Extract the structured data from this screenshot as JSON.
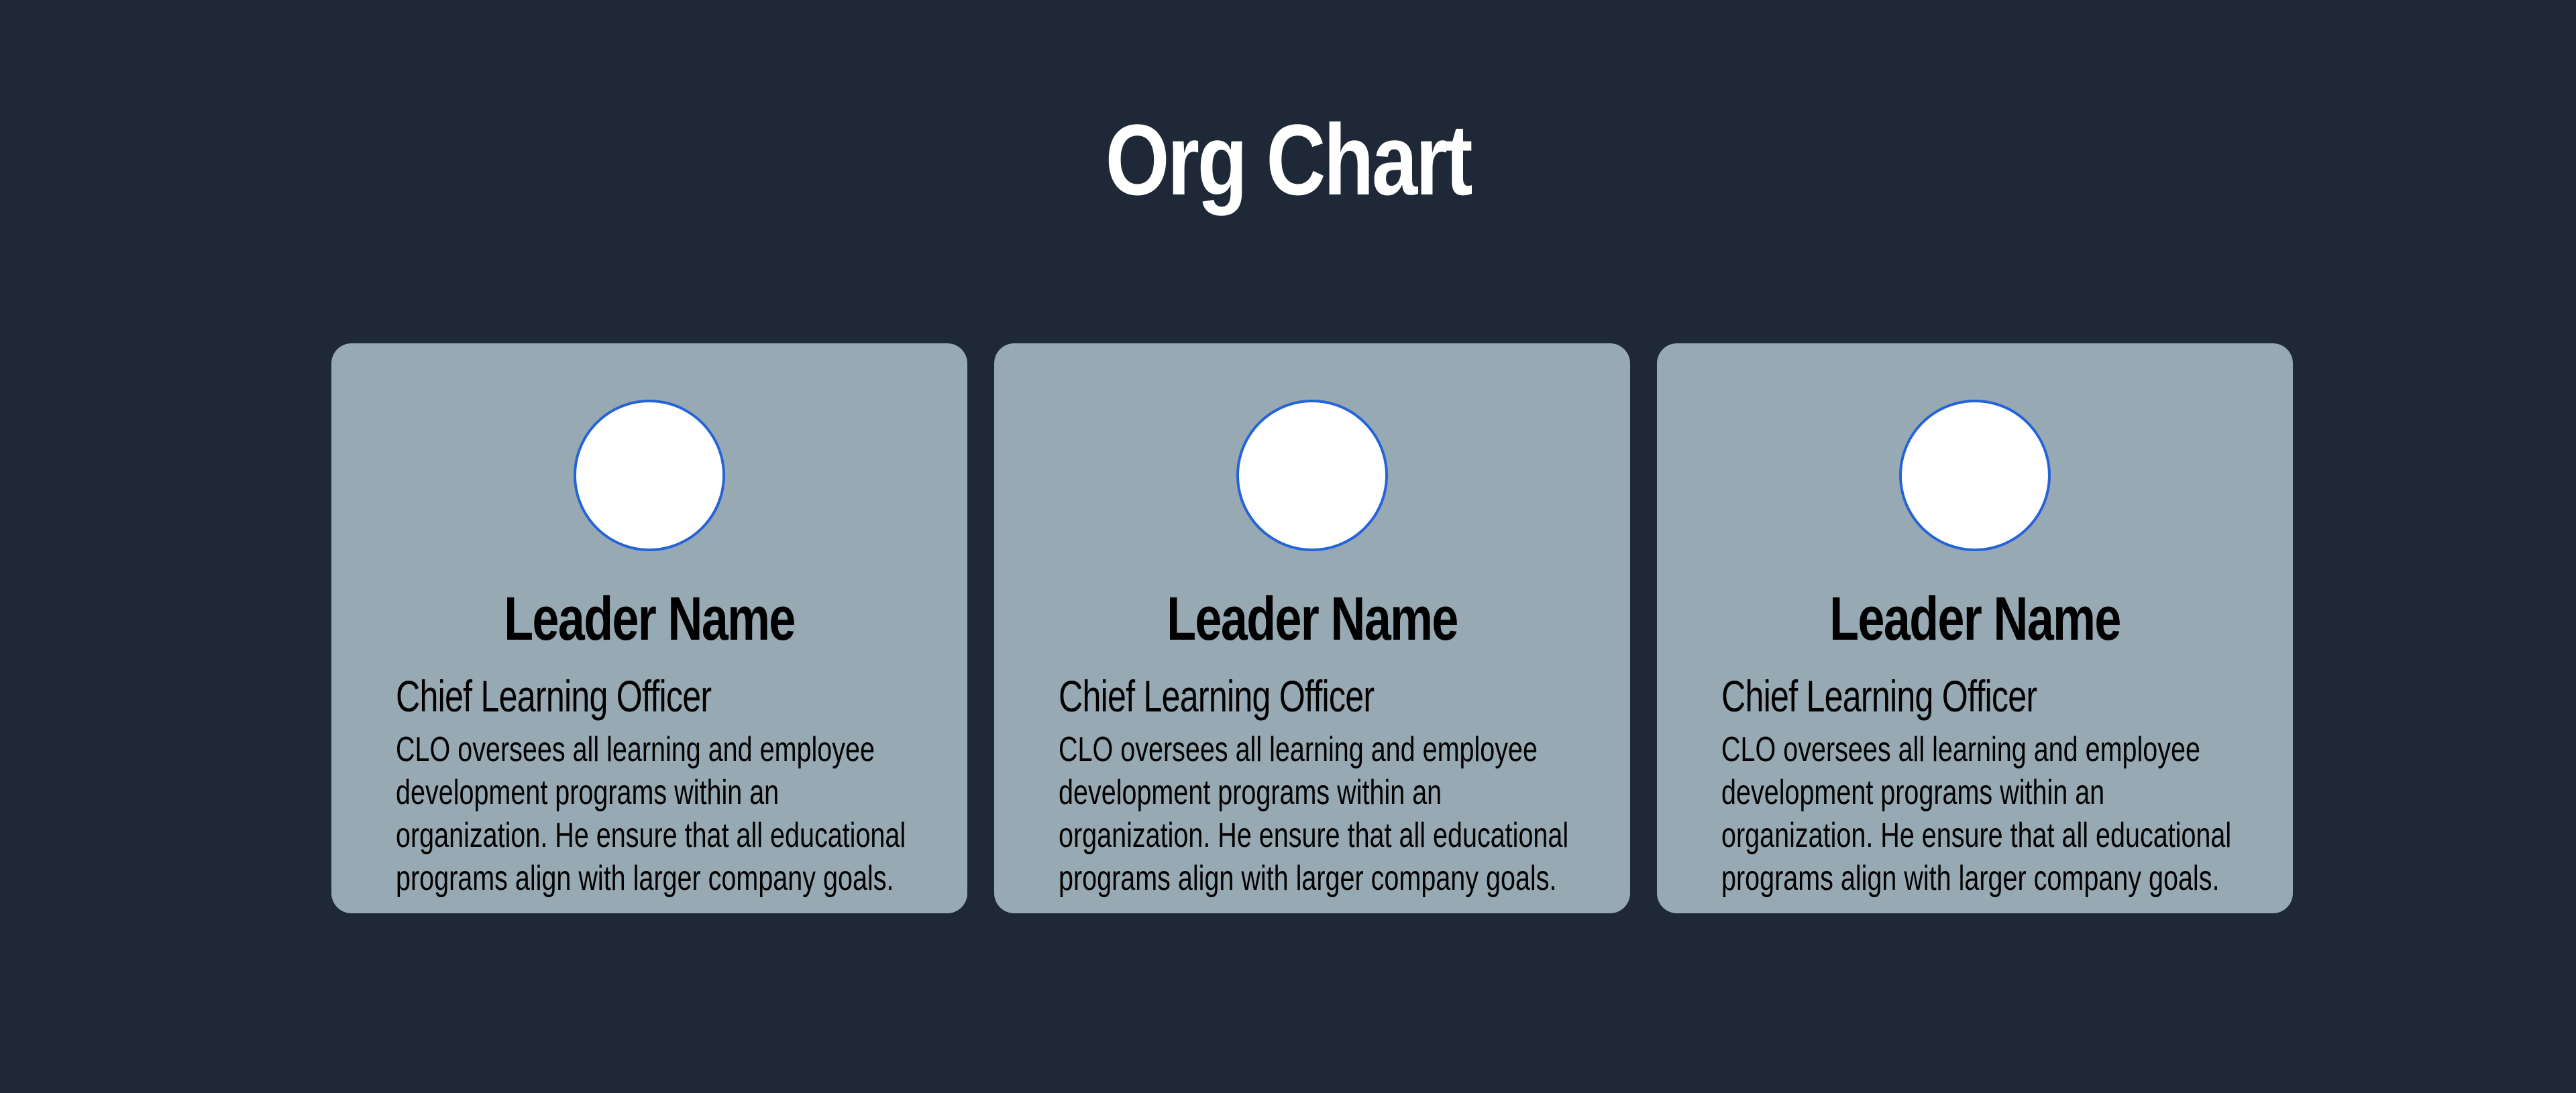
{
  "page": {
    "title": "Org Chart"
  },
  "colors": {
    "background": "#1f2836",
    "card": "#97a9b3",
    "avatar_fill": "#ffffff",
    "avatar_border": "#2563d9"
  },
  "cards": [
    {
      "name": "Leader Name",
      "role": "Chief Learning Officer",
      "description": "CLO oversees all learning and employee development programs within an organization. He ensure that all educational programs align with larger company goals."
    },
    {
      "name": "Leader Name",
      "role": "Chief Learning Officer",
      "description": "CLO oversees all learning and employee development programs within an organization. He ensure that all educational programs align with larger company goals."
    },
    {
      "name": "Leader Name",
      "role": "Chief Learning Officer",
      "description": "CLO oversees all learning and employee development programs within an organization. He ensure that all educational programs align with larger company goals."
    }
  ]
}
